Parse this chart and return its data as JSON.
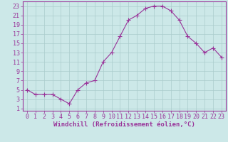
{
  "x": [
    0,
    1,
    2,
    3,
    4,
    5,
    6,
    7,
    8,
    9,
    10,
    11,
    12,
    13,
    14,
    15,
    16,
    17,
    18,
    19,
    20,
    21,
    22,
    23
  ],
  "y": [
    5,
    4,
    4,
    4,
    3,
    2,
    5,
    6.5,
    7,
    11,
    13,
    16.5,
    20,
    21,
    22.5,
    23,
    23,
    22,
    20,
    16.5,
    15,
    13,
    14,
    12
  ],
  "line_color": "#993399",
  "marker": "+",
  "marker_size": 4,
  "bg_color": "#cce8e8",
  "grid_color": "#aacccc",
  "xlabel": "Windchill (Refroidissement éolien,°C)",
  "xlabel_color": "#993399",
  "xlabel_fontsize": 6.5,
  "xticks": [
    0,
    1,
    2,
    3,
    4,
    5,
    6,
    7,
    8,
    9,
    10,
    11,
    12,
    13,
    14,
    15,
    16,
    17,
    18,
    19,
    20,
    21,
    22,
    23
  ],
  "yticks": [
    1,
    3,
    5,
    7,
    9,
    11,
    13,
    15,
    17,
    19,
    21,
    23
  ],
  "ylim": [
    0.5,
    24
  ],
  "xlim": [
    -0.5,
    23.5
  ],
  "tick_color": "#993399",
  "tick_fontsize": 6,
  "spine_color": "#993399",
  "line_width": 0.8
}
